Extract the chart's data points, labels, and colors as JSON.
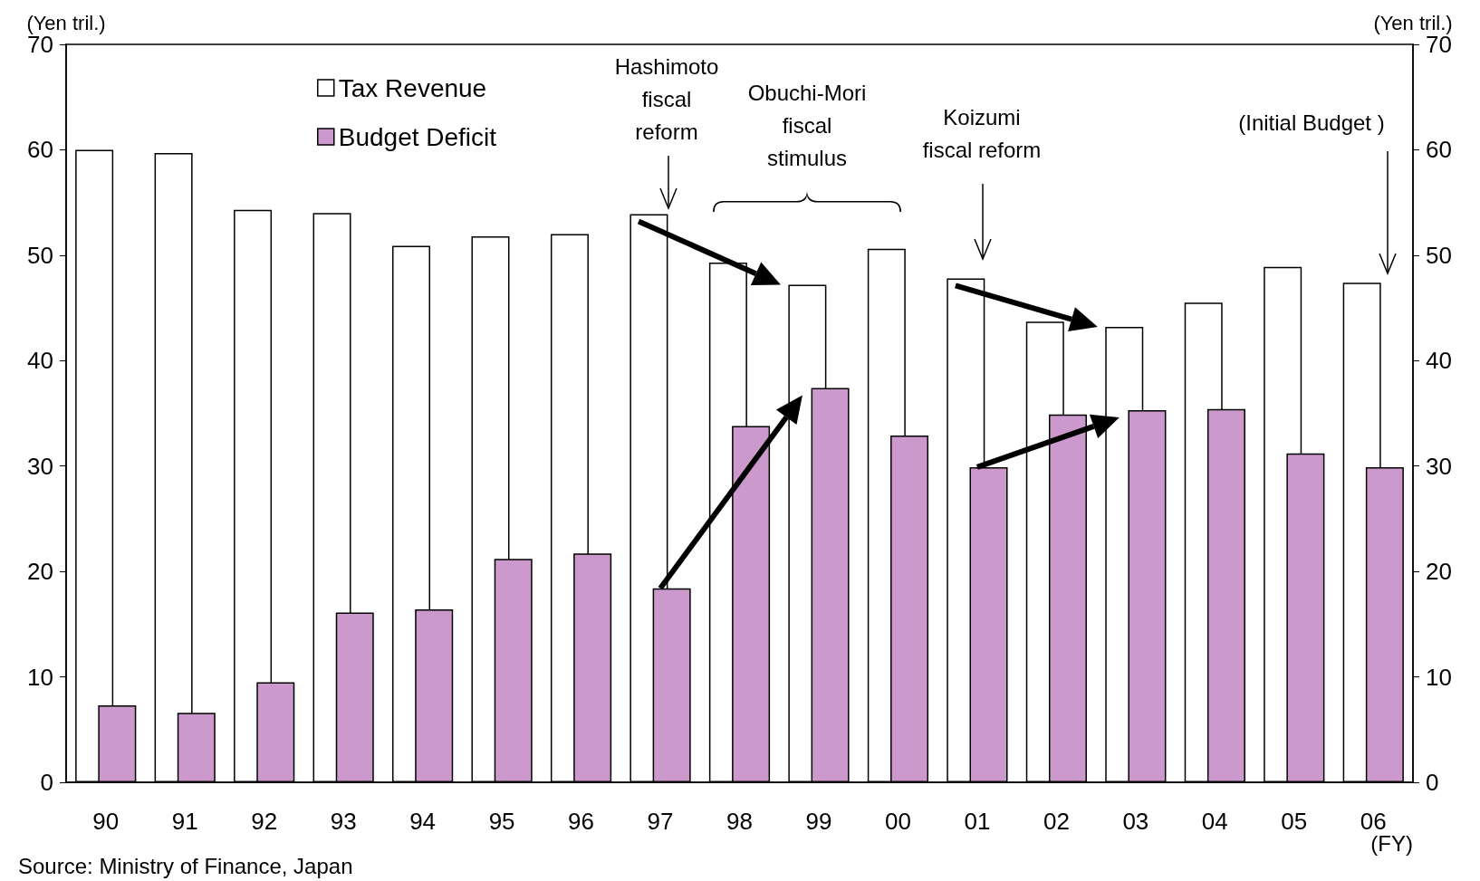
{
  "chart_data": {
    "type": "bar",
    "ylabel": "(Yen tril.)",
    "y2label": "(Yen tril.)",
    "categories": [
      "90",
      "91",
      "92",
      "93",
      "94",
      "95",
      "96",
      "97",
      "98",
      "99",
      "00",
      "01",
      "02",
      "03",
      "04",
      "05",
      "06"
    ],
    "series": [
      {
        "name": "Tax Revenue",
        "color": "#ffffff",
        "values": [
          60.0,
          59.7,
          54.3,
          54.0,
          50.9,
          51.8,
          52.0,
          53.9,
          49.3,
          47.2,
          50.6,
          47.8,
          43.7,
          43.2,
          45.5,
          48.9,
          47.4
        ]
      },
      {
        "name": "Budget Deficit",
        "color": "#cc99cc",
        "values": [
          7.3,
          6.6,
          9.5,
          16.1,
          16.4,
          21.2,
          21.7,
          18.4,
          33.8,
          37.4,
          32.9,
          29.9,
          34.9,
          35.3,
          35.4,
          31.2,
          29.9
        ]
      }
    ],
    "ylim": [
      0,
      70
    ],
    "yticks": [
      0,
      10,
      20,
      30,
      40,
      50,
      60,
      70
    ],
    "y2lim": [
      0,
      70
    ],
    "y2ticks": [
      0,
      10,
      20,
      30,
      40,
      50,
      60,
      70
    ],
    "grid": false,
    "legend": "top left",
    "annotations": [
      "Hashimoto\nfiscal\nreform",
      "Obuchi-Mori\nfiscal\nstimulus",
      "Koizumi\nfiscal reform",
      "(Initial Budget )",
      "Source: Ministry of Finance, Japan",
      "(FY)"
    ]
  }
}
